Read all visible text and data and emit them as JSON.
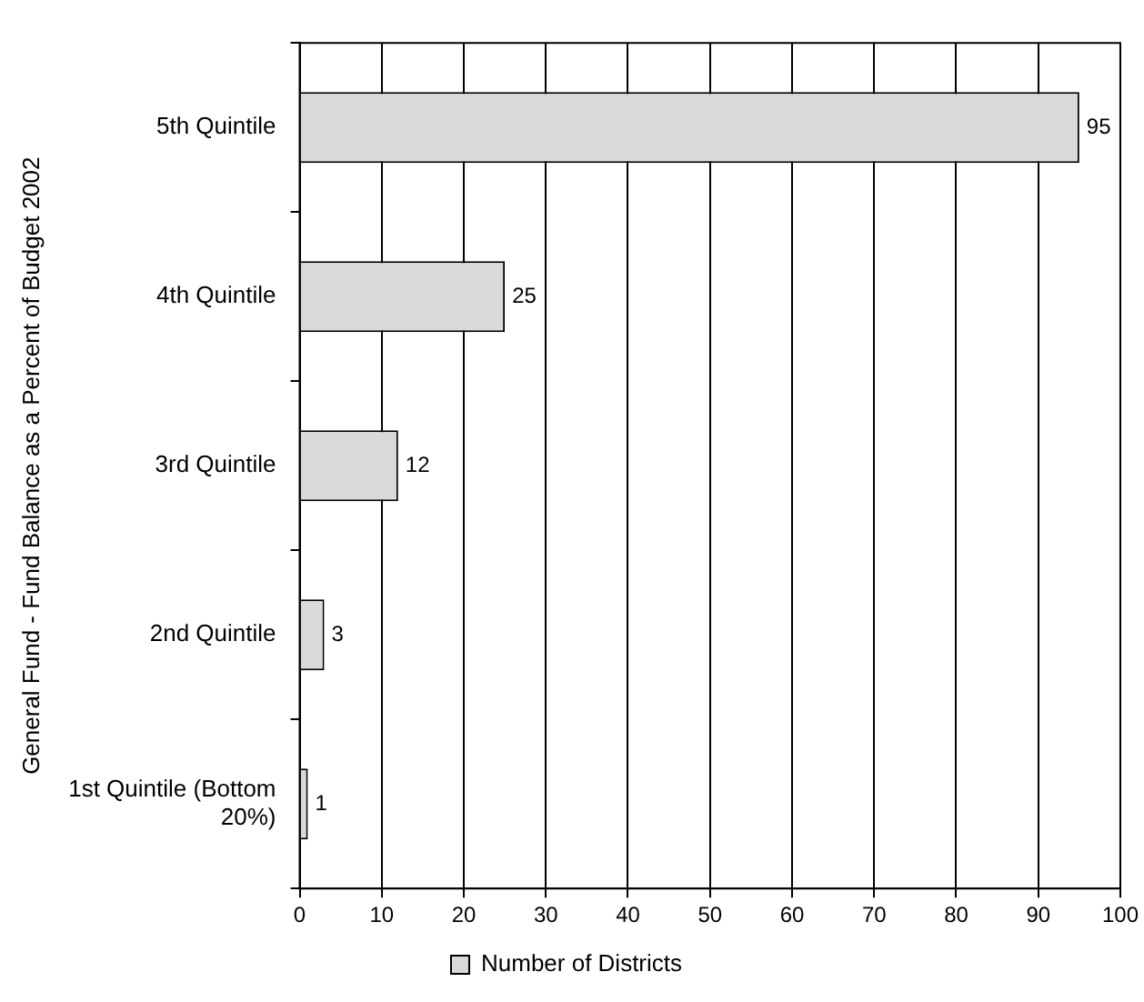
{
  "chart_data": {
    "type": "bar",
    "orientation": "horizontal",
    "ylabel": "General Fund - Fund Balance as a Percent of Budget 2002",
    "categories": [
      "5th Quintile",
      "4th Quintile",
      "3rd Quintile",
      "2nd Quintile",
      "1st Quintile (Bottom 20%)"
    ],
    "series": [
      {
        "name": "Number of Districts",
        "color": "#d9d9d9",
        "values": [
          95,
          25,
          12,
          3,
          1
        ]
      }
    ],
    "xlim": [
      0,
      100
    ],
    "xticks": [
      0,
      10,
      20,
      30,
      40,
      50,
      60,
      70,
      80,
      90,
      100
    ],
    "grid": "x",
    "legend": "bottom",
    "data_labels": true
  }
}
